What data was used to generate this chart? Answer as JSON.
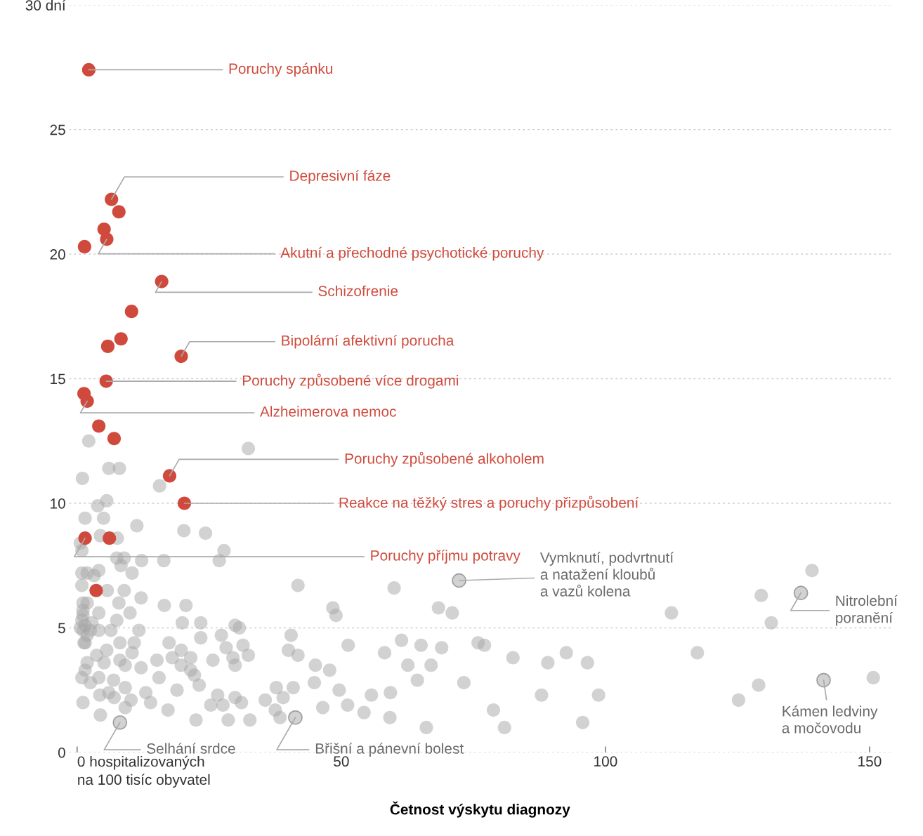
{
  "chart_data": {
    "type": "scatter",
    "xlabel": "Četnost výskytu diagnozy",
    "xlim": [
      -1.5,
      154
    ],
    "ylim": [
      0,
      30
    ],
    "xticks": [
      {
        "value": 0,
        "label": "0 hospitalizovaných\nna 100 tisíc obyvatel"
      },
      50,
      100,
      150
    ],
    "yticks": [
      0,
      5,
      10,
      15,
      20,
      25,
      {
        "value": 30,
        "label": "30 dní"
      }
    ],
    "grid": "y",
    "marker": "circle",
    "series": [
      {
        "color": "#cf4a3c",
        "x": [
          2.2,
          6.5,
          7.9,
          5.1,
          5.6,
          1.4,
          16.0,
          10.3,
          8.3,
          5.8,
          19.7,
          5.5,
          1.3,
          1.9,
          4.1,
          7.0,
          17.5,
          20.3,
          1.5,
          6.1,
          3.6
        ],
        "values": [
          27.4,
          22.2,
          21.7,
          21.0,
          20.6,
          20.3,
          18.9,
          17.7,
          16.6,
          16.3,
          15.9,
          14.9,
          14.4,
          14.1,
          13.1,
          12.6,
          11.1,
          10.0,
          8.6,
          8.6,
          6.5
        ]
      },
      {
        "color": "#a6a6a6",
        "x": [
          2.2,
          32.4,
          6.0,
          8.0,
          1.0,
          15.6,
          5.6,
          3.9,
          1.5,
          5.0,
          11.3,
          20.2,
          24.3,
          4.4,
          7.6,
          0.6,
          0.9,
          27.8,
          7.5,
          8.9,
          12.2,
          16.4,
          26.9,
          8.3,
          10.4,
          0.9,
          4.1,
          1.9,
          0.9,
          5.7,
          41.8,
          8.9,
          12.1,
          1.1,
          16.5,
          20.6,
          7.9,
          4.1,
          10.0,
          1.1,
          19.9,
          23.4,
          7.5,
          0.6,
          2.5,
          4.1,
          6.4,
          11.7,
          29.9,
          30.7,
          40.5,
          27.3,
          1.5,
          8.1,
          23.4,
          17.4,
          10.8,
          31.4,
          5.6,
          19.7,
          28.2,
          40.0,
          3.7,
          10.4,
          32.4,
          41.8,
          15.1,
          18.0,
          21.5,
          25.7,
          29.5,
          5.1,
          8.1,
          9.1,
          12.1,
          19.7,
          21.5,
          29.9,
          1.5,
          15.5,
          22.2,
          0.9,
          2.5,
          4.1,
          6.9,
          23.1,
          37.7,
          40.9,
          1.1,
          6.0,
          9.1,
          13.0,
          18.9,
          26.6,
          29.9,
          35.6,
          39.0,
          4.3,
          7.0,
          10.2,
          13.9,
          25.3,
          27.6,
          31.1,
          17.2,
          4.4,
          9.1,
          22.5,
          28.6,
          32.7,
          37.5,
          38.4,
          1.9,
          1.9,
          1.1,
          1.5,
          1.1,
          1.9,
          0.9,
          2.8,
          3.2,
          1.3,
          60.0,
          48.4,
          49.0,
          68.4,
          71.0,
          51.3,
          61.4,
          65.1,
          69.0,
          75.9,
          77.1,
          58.2,
          45.1,
          47.8,
          62.6,
          67.0,
          64.4,
          82.5,
          89.1,
          92.6,
          96.6,
          73.2,
          44.9,
          49.6,
          55.7,
          59.3,
          87.9,
          98.7,
          46.5,
          51.2,
          54.3,
          59.2,
          78.8,
          80.9,
          66.1,
          95.7,
          139.1,
          129.5,
          112.5,
          131.4,
          117.4,
          150.7,
          129.0,
          125.2,
          72.3,
          137.0,
          141.3,
          8.1,
          41.3
        ],
        "values": [
          12.5,
          12.2,
          11.4,
          11.4,
          11.0,
          10.7,
          10.1,
          9.9,
          9.4,
          9.4,
          9.1,
          8.9,
          8.8,
          8.7,
          8.6,
          8.4,
          8.1,
          8.1,
          7.8,
          7.8,
          7.7,
          7.7,
          7.7,
          7.5,
          7.2,
          7.2,
          7.3,
          7.2,
          6.7,
          6.5,
          6.7,
          6.5,
          6.2,
          6.0,
          5.9,
          5.9,
          6.0,
          5.6,
          5.6,
          5.5,
          5.2,
          5.2,
          5.3,
          5.0,
          4.9,
          4.9,
          4.9,
          4.9,
          5.1,
          5.0,
          4.7,
          4.7,
          4.4,
          4.4,
          4.6,
          4.4,
          4.4,
          4.3,
          4.1,
          4.1,
          4.2,
          4.1,
          3.9,
          4.0,
          3.9,
          3.9,
          3.7,
          3.8,
          3.8,
          3.7,
          3.8,
          3.6,
          3.7,
          3.5,
          3.4,
          3.5,
          3.3,
          3.5,
          3.3,
          3.0,
          3.1,
          3.0,
          2.8,
          3.0,
          2.9,
          2.7,
          2.6,
          2.6,
          2.0,
          2.4,
          2.6,
          2.4,
          2.5,
          2.3,
          2.2,
          2.1,
          2.2,
          2.3,
          2.2,
          2.1,
          2.0,
          1.9,
          1.9,
          2.0,
          1.7,
          1.5,
          1.8,
          1.3,
          1.3,
          1.3,
          1.7,
          1.4,
          3.6,
          6.0,
          5.7,
          5.1,
          4.9,
          4.7,
          5.3,
          5.2,
          7.1,
          4.4,
          6.6,
          5.8,
          5.5,
          5.8,
          5.6,
          4.3,
          4.5,
          4.3,
          4.2,
          4.4,
          4.3,
          4.0,
          3.5,
          3.3,
          3.5,
          3.5,
          2.9,
          3.8,
          3.6,
          4.0,
          3.6,
          2.8,
          2.8,
          2.5,
          2.3,
          2.4,
          2.3,
          2.3,
          1.8,
          1.9,
          1.6,
          1.4,
          1.7,
          1.0,
          1.0,
          1.2,
          7.3,
          6.3,
          5.6,
          5.2,
          4.0,
          3.0,
          2.7,
          2.1,
          6.9,
          6.4,
          2.9,
          1.2,
          1.4
        ]
      }
    ],
    "annotations": [
      {
        "text": "Poruchy spánku",
        "x": 2.2,
        "y": 27.4
      },
      {
        "text": "Depresivní fáze",
        "x": 6.5,
        "y": 22.2
      },
      {
        "text": "Akutní a přechodné psychotické poruchy",
        "x": 5.6,
        "y": 20.6
      },
      {
        "text": "Schizofrenie",
        "x": 16.0,
        "y": 18.9
      },
      {
        "text": "Bipolární afektivní porucha",
        "x": 19.7,
        "y": 15.9
      },
      {
        "text": "Poruchy způsobené více drogami",
        "x": 5.5,
        "y": 14.9
      },
      {
        "text": "Alzheimerova nemoc",
        "x": 1.9,
        "y": 14.1
      },
      {
        "text": "Poruchy způsobené alkoholem",
        "x": 17.5,
        "y": 11.1
      },
      {
        "text": "Reakce na těžký stres a poruchy přizpůsobení",
        "x": 20.3,
        "y": 10.0
      },
      {
        "text": "Poruchy příjmu potravy",
        "x": 1.5,
        "y": 8.6
      },
      {
        "text": "Vymknutí, podvrtnutí\na natažení kloubů\na vazů kolena",
        "x": 72.3,
        "y": 6.9
      },
      {
        "text": "Nitrolební\nporanění",
        "x": 137.0,
        "y": 6.4
      },
      {
        "text": "Kámen ledviny\na močovodu",
        "x": 141.3,
        "y": 2.9
      },
      {
        "text": "Selhání srdce",
        "x": 8.1,
        "y": 1.2
      },
      {
        "text": "Břišní a pánevní bolest",
        "x": 41.3,
        "y": 1.4
      }
    ]
  }
}
